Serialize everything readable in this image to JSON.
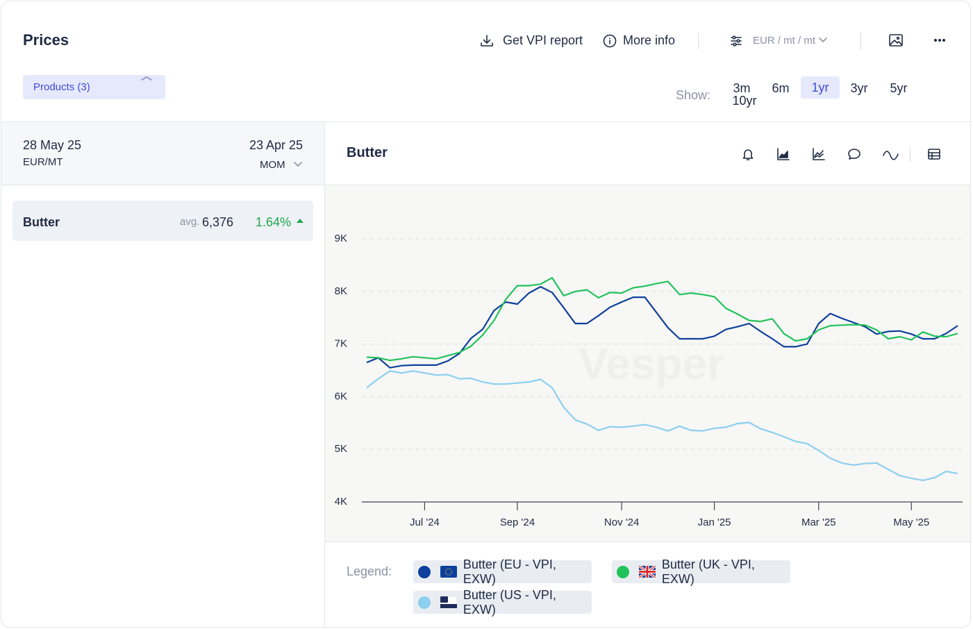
{
  "header": {
    "title": "Prices",
    "actions": [
      "Get VPI report",
      "More info"
    ],
    "unit_selector": "EUR / mt / mt"
  },
  "filters": {
    "products": "Products (3)",
    "show_label": "Show:",
    "ranges": [
      "3m",
      "6m",
      "1yr",
      "3yr",
      "5yr",
      "10yr"
    ]
  },
  "summary": {
    "date_current": "28 May 25",
    "unit": "EUR/MT",
    "date_compare": "23 Apr 25",
    "mode": "MOM"
  },
  "products": [
    {
      "name": "Butter",
      "avg_label": "avg.",
      "avg": "6,376",
      "change": "1.64%"
    }
  ],
  "chart_data": {
    "type": "line",
    "title": "Butter",
    "watermark": "Vesper",
    "legend_label": "Legend:",
    "categories": [
      null,
      null,
      null,
      null,
      null,
      "Jul '24",
      null,
      null,
      null,
      null,
      null,
      null,
      null,
      "Sep '24",
      null,
      null,
      null,
      null,
      null,
      null,
      null,
      null,
      "Nov '24",
      null,
      null,
      null,
      null,
      null,
      null,
      null,
      "Jan '25",
      null,
      null,
      null,
      null,
      null,
      null,
      null,
      null,
      "Mar '25",
      null,
      null,
      null,
      null,
      null,
      null,
      null,
      "May '25",
      null,
      null,
      null,
      null
    ],
    "ylim": [
      4000,
      9000
    ],
    "yticks": [
      {
        "value": 4000,
        "label": "4K"
      },
      {
        "value": 5000,
        "label": "5K"
      },
      {
        "value": 6000,
        "label": "6K"
      },
      {
        "value": 7000,
        "label": "7K"
      },
      {
        "value": 8000,
        "label": "8K"
      },
      {
        "value": 9000,
        "label": "9K"
      }
    ],
    "grid": true,
    "series": [
      {
        "name": "Butter (EU - VPI, EXW)",
        "color": "#0d3f9c",
        "values": [
          6650,
          6740,
          6550,
          6590,
          6600,
          6600,
          6600,
          6680,
          6820,
          7110,
          7280,
          7640,
          7800,
          7760,
          7970,
          8090,
          7980,
          7690,
          7390,
          7390,
          7540,
          7700,
          7800,
          7890,
          7890,
          7600,
          7310,
          7100,
          7100,
          7100,
          7150,
          7280,
          7330,
          7390,
          7240,
          7100,
          6950,
          6950,
          7000,
          7390,
          7580,
          7490,
          7410,
          7330,
          7190,
          7240,
          7250,
          7190,
          7100,
          7100,
          7200,
          7350
        ]
      },
      {
        "name": "Butter (UK - VPI, EXW)",
        "color": "#22c25b",
        "values": [
          6750,
          6740,
          6690,
          6720,
          6760,
          6740,
          6720,
          6780,
          6840,
          6960,
          7170,
          7450,
          7850,
          8110,
          8110,
          8140,
          8260,
          7920,
          8000,
          8030,
          7880,
          7980,
          7970,
          8070,
          8100,
          8150,
          8190,
          7940,
          7970,
          7940,
          7900,
          7680,
          7570,
          7450,
          7430,
          7480,
          7200,
          7060,
          7100,
          7270,
          7350,
          7360,
          7370,
          7360,
          7270,
          7100,
          7140,
          7080,
          7230,
          7150,
          7140,
          7200
        ]
      },
      {
        "name": "Butter (US - VPI, EXW)",
        "color": "#8ccfee",
        "values": [
          6170,
          6340,
          6490,
          6450,
          6490,
          6450,
          6410,
          6420,
          6340,
          6350,
          6280,
          6240,
          6240,
          6260,
          6280,
          6330,
          6170,
          5800,
          5560,
          5480,
          5360,
          5430,
          5420,
          5440,
          5470,
          5420,
          5350,
          5440,
          5360,
          5350,
          5400,
          5420,
          5490,
          5510,
          5390,
          5320,
          5240,
          5150,
          5110,
          4980,
          4830,
          4740,
          4700,
          4730,
          4740,
          4620,
          4500,
          4450,
          4410,
          4460,
          4580,
          4540
        ]
      }
    ]
  }
}
